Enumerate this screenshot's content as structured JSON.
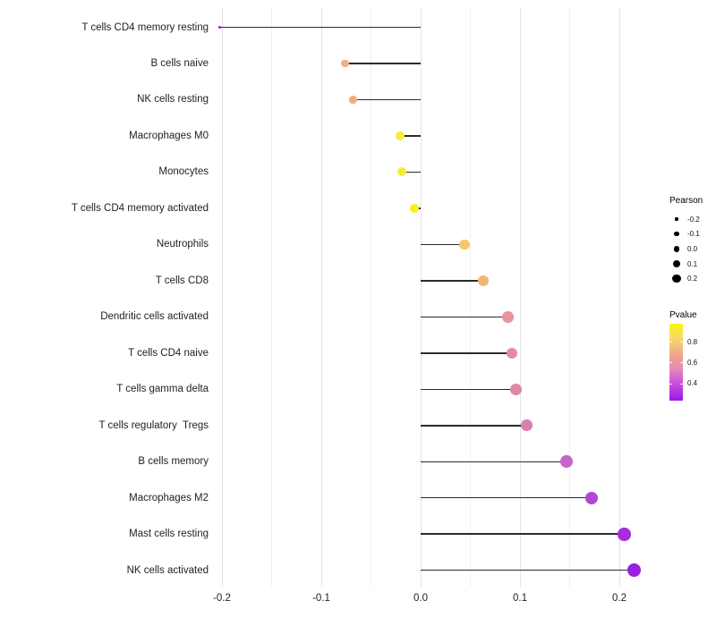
{
  "chart_data": {
    "type": "scatter",
    "subtype": "lollipop",
    "title": "",
    "xlabel": "",
    "ylabel": "",
    "grid": true,
    "xlim": [
      -0.21,
      0.225
    ],
    "x_ticks": [
      {
        "label": "-0.2",
        "value": -0.2
      },
      {
        "label": "-0.1",
        "value": -0.1
      },
      {
        "label": "0.0",
        "value": 0.0
      },
      {
        "label": "0.1",
        "value": 0.1
      },
      {
        "label": "0.2",
        "value": 0.2
      }
    ],
    "minor_grid_step": 0.05,
    "points": [
      {
        "label": "T cells CD4 memory resting",
        "pearson": -0.202,
        "color": "#9b2bdf"
      },
      {
        "label": "B cells naive",
        "pearson": -0.076,
        "color": "#f0af80"
      },
      {
        "label": "NK cells resting",
        "pearson": -0.068,
        "color": "#efad7e"
      },
      {
        "label": "Macrophages M0",
        "pearson": -0.021,
        "color": "#f7ec3b"
      },
      {
        "label": "Monocytes",
        "pearson": -0.019,
        "color": "#f7ec3b"
      },
      {
        "label": "T cells CD4 memory activated",
        "pearson": -0.006,
        "color": "#f9f01c"
      },
      {
        "label": "Neutrophils",
        "pearson": 0.044,
        "color": "#f1cb61"
      },
      {
        "label": "T cells CD8",
        "pearson": 0.063,
        "color": "#f0b473"
      },
      {
        "label": "Dendritic cells activated",
        "pearson": 0.088,
        "color": "#e7949b"
      },
      {
        "label": "T cells CD4 naive",
        "pearson": 0.092,
        "color": "#e58da0"
      },
      {
        "label": "T cells gamma delta",
        "pearson": 0.096,
        "color": "#e189a4"
      },
      {
        "label": "T cells regulatory  Tregs",
        "pearson": 0.107,
        "color": "#d97eb2"
      },
      {
        "label": "B cells memory",
        "pearson": 0.147,
        "color": "#c766c8"
      },
      {
        "label": "Macrophages M2",
        "pearson": 0.172,
        "color": "#b347d3"
      },
      {
        "label": "Mast cells resting",
        "pearson": 0.205,
        "color": "#a52cdf"
      },
      {
        "label": "NK cells activated",
        "pearson": 0.215,
        "color": "#9c1fe4"
      }
    ],
    "legend_size": {
      "title": "Pearson",
      "entries": [
        {
          "label": "-0.2",
          "value": -0.2
        },
        {
          "label": "-0.1",
          "value": -0.1
        },
        {
          "label": "0.0",
          "value": 0.0
        },
        {
          "label": "0.1",
          "value": 0.1
        },
        {
          "label": "0.2",
          "value": 0.2
        }
      ],
      "dot_color": "#000000"
    },
    "legend_color": {
      "title": "Pvalue",
      "gradient_stops": [
        {
          "color": "#faf513",
          "pos": 0
        },
        {
          "color": "#f6d66e",
          "pos": 20
        },
        {
          "color": "#efa290",
          "pos": 42
        },
        {
          "color": "#e98bb4",
          "pos": 58
        },
        {
          "color": "#cc55da",
          "pos": 76
        },
        {
          "color": "#9b15ec",
          "pos": 100
        }
      ],
      "ticks": [
        {
          "label": "0.8",
          "pos": 23.5
        },
        {
          "label": "0.6",
          "pos": 50.5
        },
        {
          "label": "0.4",
          "pos": 77.5
        }
      ]
    },
    "stem_color": "#2b2b2b"
  }
}
